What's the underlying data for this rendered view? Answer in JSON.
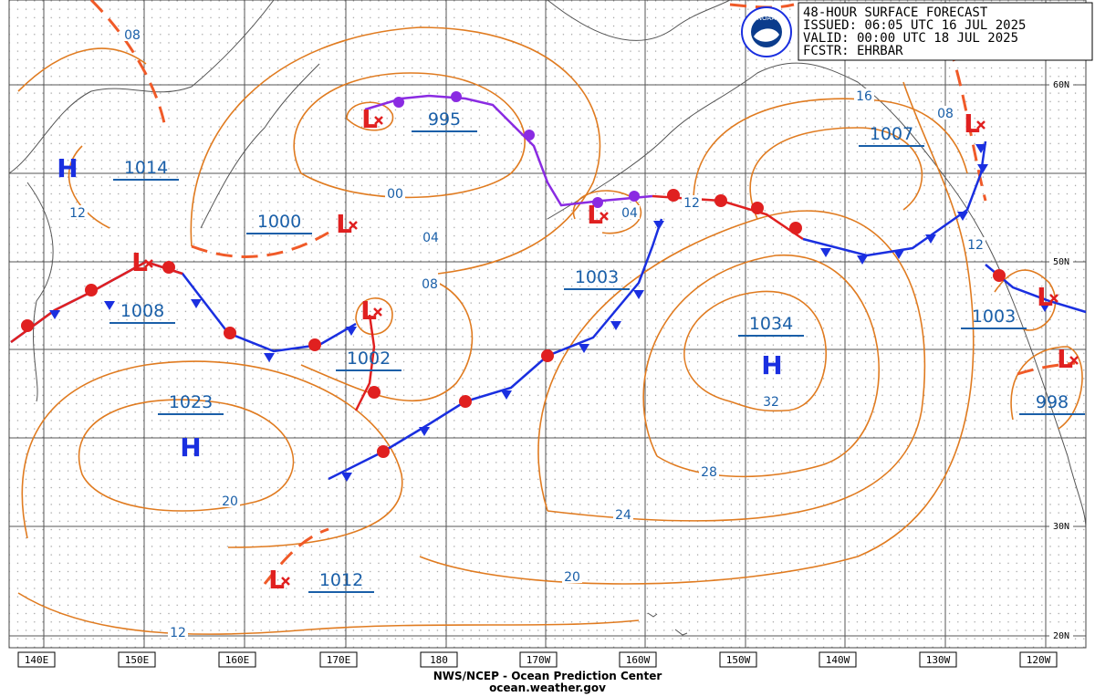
{
  "header": {
    "logo": "NOAA",
    "lines": [
      "48-HOUR SURFACE FORECAST",
      "ISSUED: 06:05 UTC 16 JUL 2025",
      "VALID:  00:00 UTC 18 JUL 2025",
      "FCSTR: EHRBAR"
    ]
  },
  "longitude_labels": [
    "140E",
    "150E",
    "160E",
    "170E",
    "180",
    "170W",
    "160W",
    "150W",
    "140W",
    "130W",
    "120W"
  ],
  "latitude_labels": [
    "60N",
    "50N",
    "30N",
    "20N"
  ],
  "pressure_labels": [
    "995",
    "1014",
    "1000",
    "1007",
    "1008",
    "1002",
    "1003",
    "1034",
    "1023",
    "1003",
    "998",
    "1012"
  ],
  "highs": [
    "H",
    "H",
    "H"
  ],
  "lows": [
    "L",
    "L",
    "L",
    "L",
    "L",
    "L",
    "L",
    "L",
    "L"
  ],
  "isobar_labels": [
    "08",
    "12",
    "00",
    "04",
    "08",
    "04",
    "12",
    "16",
    "08",
    "12",
    "32",
    "28",
    "24",
    "20",
    "20",
    "12"
  ],
  "footer": [
    "NWS/NCEP - Ocean Prediction Center",
    "ocean.weather.gov"
  ]
}
